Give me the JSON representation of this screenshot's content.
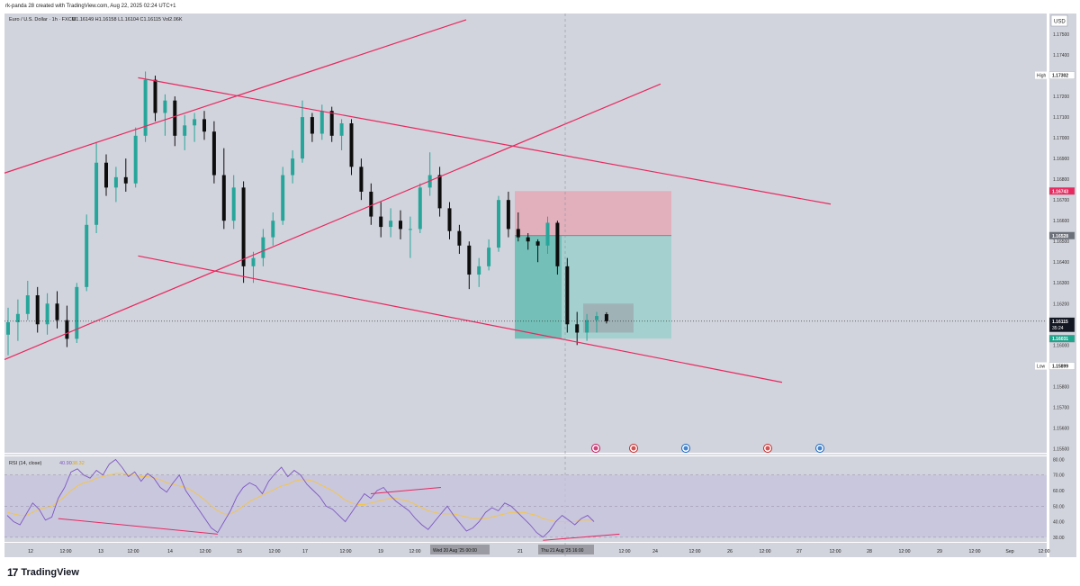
{
  "header": {
    "credit": "rk-panda 28 created with TradingView.com, Aug 22, 2025 02:24 UTC+1"
  },
  "brand": {
    "logo": "17",
    "name": "TradingView"
  },
  "colors": {
    "background": "#d2d4dd",
    "up": "#26a69a",
    "down": "#0d0d0d",
    "trendline": "#e8295f",
    "target_zone": "#9cd0cc",
    "stop_zone": "#e4a9b6",
    "rsi_line": "#7e57c2",
    "rsi_ma": "#f3c54b",
    "rsi_band": "#c6c3dd"
  },
  "chart_data": [
    {
      "type": "candlestick",
      "title": "Euro / U.S. Dollar · 1h · FXCM",
      "ohlc_label": "O1.16149 H1.16158 L1.16104 C1.16115 Vol2.06K",
      "currency": "USD",
      "y_ticks": [
        "1.17500",
        "1.17400",
        "1.17300",
        "1.17200",
        "1.17100",
        "1.17000",
        "1.16900",
        "1.16800",
        "1.16700",
        "1.16600",
        "1.16500",
        "1.16400",
        "1.16300",
        "1.16200",
        "1.16100",
        "1.16000",
        "1.15900",
        "1.15800",
        "1.15700",
        "1.15600",
        "1.15500"
      ],
      "ylim": [
        1.1548,
        1.176
      ],
      "x_ticks": [
        "12",
        "12:00",
        "13",
        "12:00",
        "14",
        "12:00",
        "15",
        "12:00",
        "17",
        "12:00",
        "19",
        "12:00",
        "20",
        "12:00",
        "21",
        "12:00",
        "22",
        "12:00",
        "24",
        "12:00",
        "26",
        "12:00",
        "27",
        "12:00",
        "28",
        "12:00",
        "29",
        "12:00",
        "Sep",
        "12:00"
      ],
      "x_highlights": [
        "Wed 20 Aug '25   00:00",
        "Thu 21 Aug '25   16:00"
      ],
      "price_markers": [
        {
          "label": "High",
          "value": "1.17302"
        },
        {
          "label": "",
          "value": "1.16743"
        },
        {
          "label": "",
          "value": "1.16528"
        },
        {
          "label": "",
          "value": "1.16115",
          "sub": "35:24"
        },
        {
          "label": "",
          "value": "1.16031"
        },
        {
          "label": "Low",
          "value": "1.15899"
        }
      ],
      "position": {
        "entry": 1.16528,
        "stop": 1.16743,
        "target": 1.16031
      },
      "channels": [
        {
          "name": "rising channel",
          "lines": [
            [
              [
                0,
                1.1683
              ],
              [
                19,
                1.1757
              ]
            ],
            [
              [
                0,
                1.1593
              ],
              [
                27,
                1.1726
              ]
            ]
          ]
        },
        {
          "name": "falling channel",
          "lines": [
            [
              [
                5.5,
                1.1729
              ],
              [
                34,
                1.1668
              ]
            ],
            [
              [
                5.5,
                1.1643
              ],
              [
                32,
                1.1582
              ]
            ]
          ]
        }
      ],
      "series": [
        {
          "name": "EURUSD 1h",
          "candles": [
            [
              1.1605,
              1.1618,
              1.1595,
              1.1611
            ],
            [
              1.1611,
              1.1622,
              1.1602,
              1.1615
            ],
            [
              1.1615,
              1.1631,
              1.1612,
              1.1624
            ],
            [
              1.1624,
              1.1628,
              1.1606,
              1.161
            ],
            [
              1.161,
              1.1625,
              1.1605,
              1.162
            ],
            [
              1.162,
              1.1626,
              1.1608,
              1.1612
            ],
            [
              1.1612,
              1.1619,
              1.1599,
              1.1603
            ],
            [
              1.1603,
              1.163,
              1.1601,
              1.1628
            ],
            [
              1.1628,
              1.1663,
              1.1626,
              1.1658
            ],
            [
              1.1658,
              1.1698,
              1.1654,
              1.1688
            ],
            [
              1.1688,
              1.1692,
              1.1672,
              1.1676
            ],
            [
              1.1676,
              1.1686,
              1.1669,
              1.1681
            ],
            [
              1.1681,
              1.169,
              1.1674,
              1.1678
            ],
            [
              1.1678,
              1.1705,
              1.1676,
              1.1701
            ],
            [
              1.1701,
              1.1732,
              1.1698,
              1.1728
            ],
            [
              1.1728,
              1.173,
              1.1708,
              1.1712
            ],
            [
              1.1712,
              1.1721,
              1.1701,
              1.1718
            ],
            [
              1.1718,
              1.172,
              1.1696,
              1.1701
            ],
            [
              1.1701,
              1.1711,
              1.1694,
              1.1706
            ],
            [
              1.1706,
              1.1712,
              1.1698,
              1.1709
            ],
            [
              1.1709,
              1.1713,
              1.1699,
              1.1703
            ],
            [
              1.1703,
              1.1708,
              1.1678,
              1.1682
            ],
            [
              1.1682,
              1.1695,
              1.1656,
              1.166
            ],
            [
              1.166,
              1.1682,
              1.1656,
              1.1676
            ],
            [
              1.1676,
              1.1679,
              1.163,
              1.1638
            ],
            [
              1.1638,
              1.1645,
              1.163,
              1.1642
            ],
            [
              1.1642,
              1.1656,
              1.1638,
              1.1652
            ],
            [
              1.1652,
              1.1664,
              1.1648,
              1.166
            ],
            [
              1.166,
              1.1686,
              1.1658,
              1.1682
            ],
            [
              1.1682,
              1.1694,
              1.1678,
              1.169
            ],
            [
              1.169,
              1.1718,
              1.1688,
              1.171
            ],
            [
              1.171,
              1.1712,
              1.1698,
              1.1702
            ],
            [
              1.1702,
              1.1716,
              1.1699,
              1.1713
            ],
            [
              1.1713,
              1.1715,
              1.1698,
              1.1701
            ],
            [
              1.1701,
              1.1709,
              1.1694,
              1.1707
            ],
            [
              1.1707,
              1.1709,
              1.1682,
              1.1686
            ],
            [
              1.1686,
              1.169,
              1.167,
              1.1674
            ],
            [
              1.1674,
              1.1678,
              1.1658,
              1.1662
            ],
            [
              1.1662,
              1.1669,
              1.1652,
              1.1657
            ],
            [
              1.1657,
              1.1666,
              1.1652,
              1.166
            ],
            [
              1.166,
              1.1665,
              1.1651,
              1.1656
            ],
            [
              1.1656,
              1.1662,
              1.1642,
              1.1656
            ],
            [
              1.1656,
              1.1678,
              1.1654,
              1.1676
            ],
            [
              1.1676,
              1.1693,
              1.1672,
              1.1682
            ],
            [
              1.1682,
              1.1686,
              1.1662,
              1.1666
            ],
            [
              1.1666,
              1.1669,
              1.1651,
              1.1655
            ],
            [
              1.1655,
              1.1658,
              1.1644,
              1.1648
            ],
            [
              1.1648,
              1.165,
              1.1627,
              1.1634
            ],
            [
              1.1634,
              1.1642,
              1.1628,
              1.1638
            ],
            [
              1.1638,
              1.1651,
              1.1636,
              1.1647
            ],
            [
              1.1647,
              1.1672,
              1.1645,
              1.167
            ],
            [
              1.167,
              1.1674,
              1.1652,
              1.1656
            ],
            [
              1.1656,
              1.1664,
              1.165,
              1.1652
            ],
            [
              1.1652,
              1.1654,
              1.1646,
              1.165
            ],
            [
              1.165,
              1.1651,
              1.164,
              1.1648
            ],
            [
              1.1648,
              1.1662,
              1.1644,
              1.1659
            ],
            [
              1.1659,
              1.166,
              1.1634,
              1.1638
            ],
            [
              1.1638,
              1.1642,
              1.1606,
              1.161
            ],
            [
              1.161,
              1.1616,
              1.16,
              1.1606
            ],
            [
              1.1606,
              1.1615,
              1.1602,
              1.1612
            ],
            [
              1.1612,
              1.1616,
              1.1606,
              1.1614
            ],
            [
              1.16149,
              1.16158,
              1.16104,
              1.16115
            ]
          ]
        }
      ]
    },
    {
      "type": "line",
      "title": "RSI",
      "legend": "RSI (14, close)",
      "legend_values": [
        "40.90",
        "38.32"
      ],
      "y_ticks": [
        "80.00",
        "70.00",
        "60.00",
        "50.00",
        "40.00",
        "30.00"
      ],
      "ylim": [
        27,
        82
      ],
      "band": [
        30,
        70
      ],
      "divergences": [
        {
          "kind": "bearish",
          "x": [
            57,
            68
          ],
          "y": [
            58,
            62
          ]
        },
        {
          "kind": "bullish",
          "x": [
            8,
            33
          ],
          "y": [
            42,
            32
          ]
        },
        {
          "kind": "bullish",
          "x": [
            84,
            96
          ],
          "y": [
            28,
            32
          ]
        }
      ],
      "series": [
        {
          "name": "RSI",
          "values": [
            44,
            40,
            38,
            45,
            52,
            48,
            41,
            43,
            55,
            62,
            72,
            74,
            70,
            68,
            73,
            70,
            77,
            80,
            75,
            69,
            72,
            66,
            71,
            68,
            62,
            59,
            65,
            70,
            60,
            54,
            48,
            42,
            36,
            33,
            40,
            47,
            56,
            62,
            65,
            63,
            58,
            66,
            71,
            75,
            69,
            73,
            70,
            64,
            60,
            56,
            50,
            48,
            44,
            40,
            46,
            52,
            58,
            55,
            60,
            62,
            57,
            53,
            50,
            47,
            42,
            38,
            35,
            40,
            45,
            50,
            44,
            39,
            34,
            36,
            40,
            46,
            49,
            47,
            52,
            50,
            46,
            42,
            38,
            33,
            30,
            34,
            40,
            44,
            41,
            38,
            42,
            44,
            40
          ]
        },
        {
          "name": "RSI MA",
          "values": [
            46,
            45,
            44,
            44,
            46,
            48,
            49,
            50,
            53,
            56,
            60,
            63,
            65,
            66,
            68,
            69,
            70,
            71,
            71,
            70,
            70,
            69,
            69,
            68,
            67,
            65,
            64,
            63,
            62,
            60,
            57,
            54,
            50,
            47,
            45,
            45,
            47,
            50,
            53,
            55,
            57,
            59,
            61,
            63,
            64,
            66,
            67,
            67,
            66,
            64,
            62,
            60,
            57,
            54,
            52,
            51,
            51,
            52,
            53,
            54,
            55,
            55,
            54,
            53,
            51,
            49,
            47,
            46,
            45,
            45,
            45,
            44,
            43,
            42,
            42,
            42,
            43,
            44,
            45,
            46,
            46,
            46,
            45,
            44,
            42,
            41,
            40,
            40,
            40,
            40,
            41,
            41,
            41
          ]
        }
      ]
    }
  ],
  "event_icons": [
    "lightning-icon",
    "us-flag-icon",
    "globe-icon",
    "us-flag-icon",
    "globe-icon"
  ]
}
